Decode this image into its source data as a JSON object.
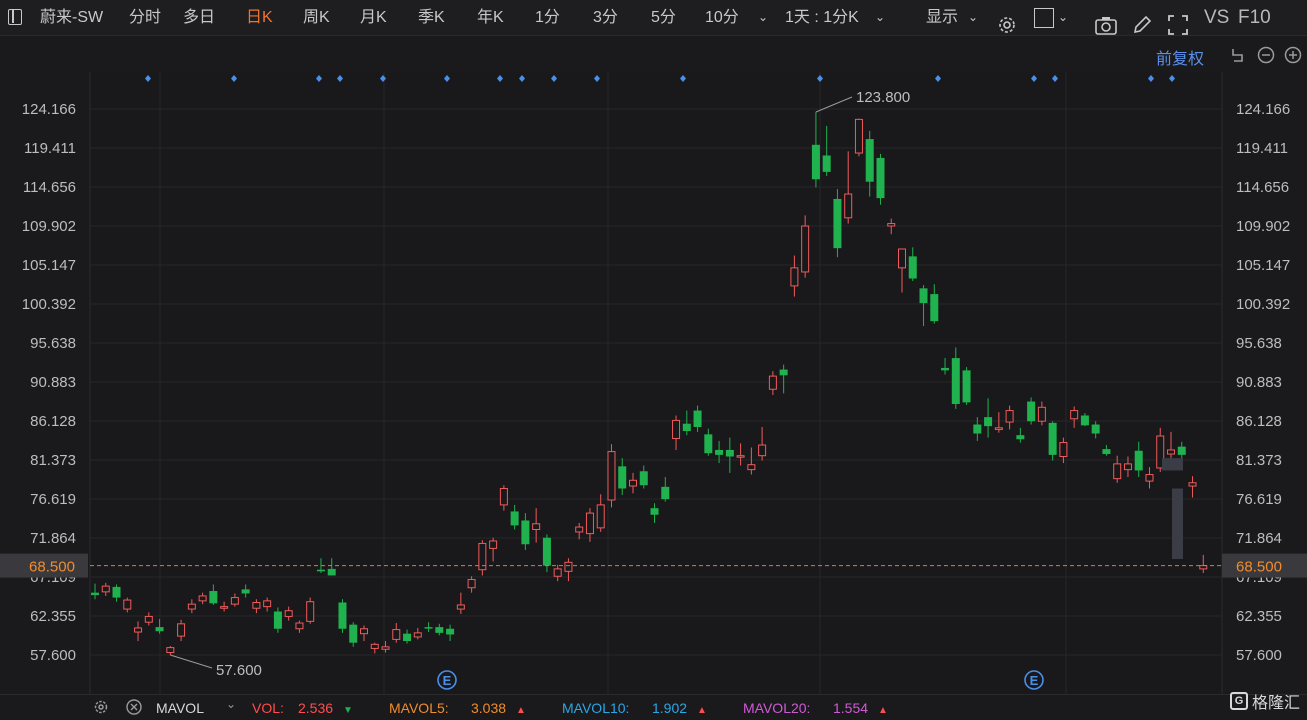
{
  "toolbar": {
    "stock_name": "蔚来-SW",
    "periods": [
      "分时",
      "多日",
      "日K",
      "周K",
      "月K",
      "季K",
      "年K",
      "1分",
      "3分",
      "5分",
      "10分"
    ],
    "active_period": "日K",
    "interval_select": "1天 : 1分K",
    "display_menu": "显示",
    "compare_label": "VS",
    "f10_label": "F10"
  },
  "subbar": {
    "adjust_label": "前复权"
  },
  "chart_data": {
    "type": "candlestick",
    "y_axis_labels": [
      "124.166",
      "119.411",
      "114.656",
      "109.902",
      "105.147",
      "100.392",
      "95.638",
      "90.883",
      "86.128",
      "81.373",
      "76.619",
      "71.864",
      "67.109",
      "62.355",
      "57.600"
    ],
    "ylim": [
      57.6,
      124.166
    ],
    "current_price": "68.500",
    "high_annotation": "123.800",
    "low_annotation": "57.600",
    "event_marker": "E",
    "candles": [
      [
        65.2,
        66.3,
        64.4,
        64.9
      ],
      [
        65.3,
        66.4,
        64.8,
        66.0
      ],
      [
        65.9,
        66.2,
        64.1,
        64.6
      ],
      [
        63.2,
        64.6,
        62.8,
        64.3
      ],
      [
        60.4,
        61.7,
        59.3,
        60.9
      ],
      [
        61.6,
        62.8,
        61.2,
        62.3
      ],
      [
        61.0,
        62.0,
        60.2,
        60.5
      ],
      [
        57.9,
        58.7,
        57.6,
        58.5
      ],
      [
        59.9,
        61.9,
        59.3,
        61.4
      ],
      [
        63.2,
        64.4,
        62.7,
        63.8
      ],
      [
        64.2,
        65.2,
        63.8,
        64.8
      ],
      [
        65.4,
        66.2,
        63.7,
        63.9
      ],
      [
        63.3,
        64.1,
        62.9,
        63.5
      ],
      [
        63.8,
        65.1,
        63.5,
        64.6
      ],
      [
        65.6,
        66.2,
        64.6,
        65.1
      ],
      [
        63.3,
        64.4,
        62.7,
        64.0
      ],
      [
        63.5,
        64.6,
        62.9,
        64.2
      ],
      [
        62.9,
        63.4,
        60.3,
        60.8
      ],
      [
        62.3,
        63.5,
        61.8,
        63.0
      ],
      [
        60.8,
        61.8,
        60.3,
        61.5
      ],
      [
        61.7,
        64.6,
        61.4,
        64.1
      ],
      [
        68.0,
        69.4,
        67.6,
        67.8
      ],
      [
        68.1,
        69.4,
        67.4,
        67.3
      ],
      [
        64.0,
        64.4,
        60.3,
        60.8
      ],
      [
        61.3,
        61.6,
        58.6,
        59.1
      ],
      [
        60.2,
        61.2,
        59.3,
        60.8
      ],
      [
        58.4,
        59.1,
        57.8,
        58.9
      ],
      [
        58.3,
        59.3,
        57.9,
        58.6
      ],
      [
        59.5,
        61.5,
        59.1,
        60.7
      ],
      [
        60.2,
        60.7,
        59.0,
        59.3
      ],
      [
        59.8,
        60.9,
        59.5,
        60.3
      ],
      [
        61.0,
        61.6,
        60.4,
        60.9
      ],
      [
        61.0,
        61.4,
        60.0,
        60.3
      ],
      [
        60.8,
        61.3,
        59.3,
        60.1
      ],
      [
        63.2,
        65.2,
        62.6,
        63.7
      ],
      [
        65.8,
        67.2,
        65.2,
        66.8
      ],
      [
        68.0,
        71.6,
        67.3,
        71.2
      ],
      [
        70.6,
        71.9,
        69.0,
        71.5
      ],
      [
        75.9,
        78.3,
        75.2,
        77.9
      ],
      [
        75.1,
        75.9,
        72.9,
        73.4
      ],
      [
        74.0,
        74.9,
        70.4,
        71.1
      ],
      [
        72.9,
        75.5,
        71.3,
        73.6
      ],
      [
        71.9,
        72.3,
        67.7,
        68.5
      ],
      [
        67.2,
        68.6,
        66.6,
        68.1
      ],
      [
        67.8,
        69.4,
        66.6,
        68.9
      ],
      [
        72.6,
        73.7,
        71.7,
        73.2
      ],
      [
        72.4,
        75.5,
        71.4,
        74.9
      ],
      [
        73.1,
        77.2,
        72.6,
        75.9
      ],
      [
        76.5,
        83.3,
        75.6,
        82.4
      ],
      [
        80.6,
        81.6,
        77.1,
        77.9
      ],
      [
        78.2,
        79.8,
        77.3,
        78.9
      ],
      [
        80.0,
        80.7,
        77.9,
        78.3
      ],
      [
        75.5,
        76.1,
        73.7,
        74.7
      ],
      [
        78.1,
        79.3,
        76.3,
        76.6
      ],
      [
        84.0,
        86.8,
        82.6,
        86.2
      ],
      [
        85.8,
        87.4,
        84.4,
        84.9
      ],
      [
        87.4,
        88.0,
        84.8,
        85.4
      ],
      [
        84.5,
        85.2,
        81.9,
        82.2
      ],
      [
        82.6,
        83.7,
        81.0,
        82.0
      ],
      [
        82.6,
        84.1,
        79.8,
        81.8
      ],
      [
        81.8,
        83.4,
        80.7,
        81.9
      ],
      [
        80.2,
        82.9,
        79.6,
        80.8
      ],
      [
        81.9,
        85.4,
        81.3,
        83.2
      ],
      [
        90.0,
        92.2,
        89.3,
        91.6
      ],
      [
        92.4,
        93.0,
        89.5,
        91.7
      ],
      [
        102.6,
        106.3,
        101.3,
        104.8
      ],
      [
        104.3,
        111.2,
        103.6,
        109.9
      ],
      [
        119.8,
        123.8,
        114.6,
        115.6
      ],
      [
        118.5,
        122.1,
        116.0,
        116.5
      ],
      [
        113.2,
        114.4,
        106.1,
        107.2
      ],
      [
        110.9,
        119.0,
        110.2,
        113.8
      ],
      [
        118.8,
        123.0,
        118.4,
        122.9
      ],
      [
        120.5,
        121.5,
        113.5,
        115.3
      ],
      [
        118.2,
        118.7,
        112.5,
        113.3
      ],
      [
        109.9,
        110.8,
        108.9,
        110.2
      ],
      [
        104.8,
        106.6,
        101.8,
        107.1
      ],
      [
        106.2,
        107.3,
        103.2,
        103.5
      ],
      [
        102.3,
        102.7,
        97.7,
        100.5
      ],
      [
        101.6,
        102.8,
        98.0,
        98.3
      ],
      [
        92.6,
        93.8,
        91.8,
        92.3
      ],
      [
        93.8,
        95.1,
        87.6,
        88.2
      ],
      [
        92.3,
        92.7,
        88.1,
        88.4
      ],
      [
        85.7,
        86.6,
        83.7,
        84.6
      ],
      [
        86.6,
        88.9,
        84.1,
        85.5
      ],
      [
        85.1,
        87.2,
        84.7,
        85.3
      ],
      [
        86.0,
        88.0,
        85.1,
        87.4
      ],
      [
        84.4,
        85.3,
        83.5,
        83.9
      ],
      [
        88.5,
        89.0,
        85.7,
        86.1
      ],
      [
        86.1,
        88.5,
        85.6,
        87.8
      ],
      [
        85.9,
        86.1,
        81.3,
        82.0
      ],
      [
        81.8,
        84.1,
        81.0,
        83.5
      ],
      [
        86.4,
        87.9,
        85.3,
        87.4
      ],
      [
        86.8,
        87.1,
        85.5,
        85.6
      ],
      [
        85.7,
        86.1,
        84.0,
        84.6
      ],
      [
        82.7,
        83.2,
        81.9,
        82.1
      ],
      [
        79.1,
        81.9,
        78.6,
        80.9
      ],
      [
        80.2,
        81.8,
        79.3,
        80.9
      ],
      [
        82.5,
        83.6,
        79.3,
        80.1
      ],
      [
        78.8,
        80.5,
        77.9,
        79.6
      ],
      [
        80.4,
        85.3,
        79.9,
        84.3
      ],
      [
        82.1,
        84.8,
        81.6,
        82.6
      ],
      [
        83.0,
        83.6,
        81.4,
        82.0
      ],
      [
        78.2,
        79.4,
        76.8,
        78.6
      ],
      [
        68.1,
        69.8,
        67.6,
        68.5
      ]
    ],
    "gap_blocks": [
      [
        81.6,
        80.1
      ],
      [
        77.9,
        69.3
      ]
    ],
    "top_markers_x": [
      148,
      234,
      319,
      340,
      383,
      447,
      500,
      522,
      554,
      597,
      683,
      820,
      938,
      1034,
      1055,
      1151,
      1172
    ]
  },
  "bottom": {
    "indicator": "MAVOL",
    "vol_label": "VOL:",
    "vol_value": "2.536",
    "vol_color": "#ff4d4f",
    "mavol5_label": "MAVOL5:",
    "mavol5_value": "3.038",
    "mavol5_color": "#f08c2e",
    "mavol10_label": "MAVOL10:",
    "mavol10_value": "1.902",
    "mavol10_color": "#2aa7e6",
    "mavol20_label": "MAVOL20:",
    "mavol20_value": "1.554",
    "mavol20_color": "#d05ad6",
    "watermark": "格隆汇"
  }
}
